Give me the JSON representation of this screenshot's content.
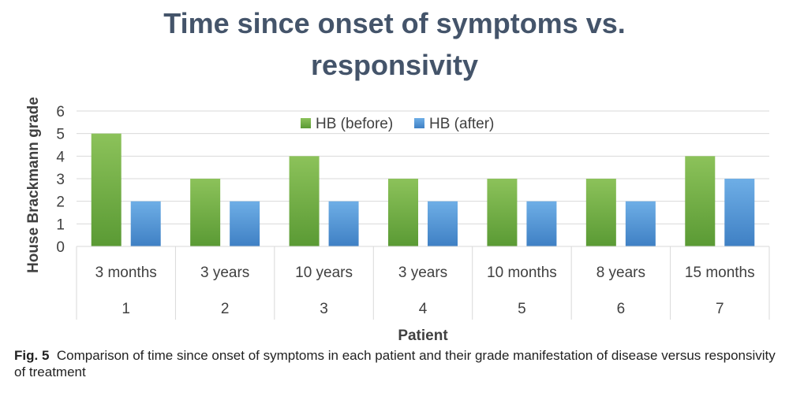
{
  "chart_data": {
    "type": "bar",
    "title_lines": [
      "Time since onset of symptoms vs.",
      "responsivity"
    ],
    "xlabel": "Patient",
    "ylabel": "House Brackmann grade",
    "ylim": [
      0,
      6
    ],
    "yticks": [
      "0",
      "1",
      "2",
      "3",
      "4",
      "5",
      "6"
    ],
    "grid": true,
    "legend_position": "top",
    "categories": [
      {
        "duration": "3 months",
        "patient": "1"
      },
      {
        "duration": "3 years",
        "patient": "2"
      },
      {
        "duration": "10 years",
        "patient": "3"
      },
      {
        "duration": "3 years",
        "patient": "4"
      },
      {
        "duration": "10 months",
        "patient": "5"
      },
      {
        "duration": "8 years",
        "patient": "6"
      },
      {
        "duration": "15 months",
        "patient": "7"
      }
    ],
    "series": [
      {
        "name": "HB (before)",
        "values": [
          5,
          3,
          4,
          3,
          3,
          3,
          4
        ],
        "color": "#6aaa3e",
        "color_light": "#8cc25a"
      },
      {
        "name": "HB (after)",
        "values": [
          2,
          2,
          2,
          2,
          2,
          2,
          3
        ],
        "color": "#4a8fd4",
        "color_light": "#6eaee6"
      }
    ]
  },
  "caption": {
    "label": "Fig. 5",
    "text": "Comparison of time since onset of symptoms in each patient and their grade manifestation of disease versus responsivity of treatment"
  },
  "colors": {
    "title": "#44546a",
    "axis_text": "#404040",
    "grid": "#d9d9d9"
  }
}
